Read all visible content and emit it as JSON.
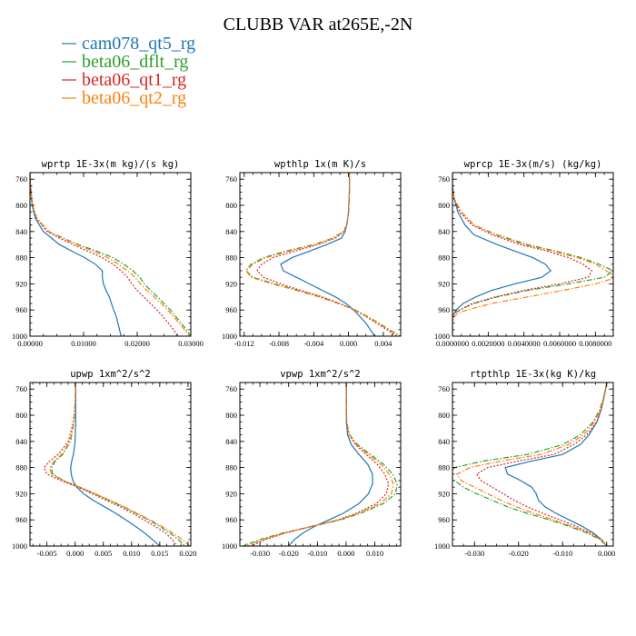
{
  "figure": {
    "title": "CLUBB VAR at265E,-2N"
  },
  "legend": [
    {
      "name": "cam078_qt5_rg",
      "color": "#1f77b4",
      "dash": "solid"
    },
    {
      "name": "beta06_dflt_rg",
      "color": "#2ca02c",
      "dash": "dashdot"
    },
    {
      "name": "beta06_qt1_rg",
      "color": "#d62728",
      "dash": "dot"
    },
    {
      "name": "beta06_qt2_rg",
      "color": "#ff7f0e",
      "dash": "dashdot"
    }
  ],
  "chart_data": [
    {
      "type": "line",
      "title": "wprtp 1E-3x(m kg)/(s kg)",
      "xlim": [
        0,
        0.03
      ],
      "ylim": [
        1000,
        750
      ],
      "xticks": [
        0,
        0.01,
        0.02,
        0.03
      ],
      "xtick_labels": [
        "0.00000",
        "0.01000",
        "0.02000",
        "0.03000"
      ],
      "yticks": [
        760,
        800,
        840,
        880,
        920,
        960,
        1000
      ],
      "ytick_labels": [
        "760",
        "800",
        "840",
        "880",
        "920",
        "960",
        "1000"
      ],
      "y": [
        750,
        760,
        780,
        800,
        820,
        840,
        850,
        860,
        870,
        880,
        890,
        900,
        910,
        920,
        930,
        940,
        950,
        960,
        970,
        980,
        990,
        1000
      ],
      "series": [
        {
          "name": "cam078_qt5_rg",
          "values": [
            0.0,
            0.0,
            0.0002,
            0.0004,
            0.001,
            0.0025,
            0.004,
            0.0055,
            0.0078,
            0.0102,
            0.0122,
            0.0135,
            0.0135,
            0.0137,
            0.0142,
            0.0148,
            0.0152,
            0.0156,
            0.0161,
            0.0164,
            0.0167,
            0.017
          ]
        },
        {
          "name": "beta06_dflt_rg",
          "values": [
            0.0,
            0.0,
            0.0002,
            0.0005,
            0.0013,
            0.0035,
            0.0062,
            0.009,
            0.0125,
            0.0155,
            0.0175,
            0.0192,
            0.0205,
            0.0213,
            0.0225,
            0.0238,
            0.025,
            0.0262,
            0.0272,
            0.0282,
            0.0292,
            0.03
          ]
        },
        {
          "name": "beta06_qt1_rg",
          "values": [
            0.0,
            0.0,
            0.0002,
            0.0005,
            0.0012,
            0.0032,
            0.0055,
            0.008,
            0.0108,
            0.0135,
            0.0155,
            0.017,
            0.0182,
            0.019,
            0.02,
            0.0212,
            0.0225,
            0.0237,
            0.0248,
            0.0258,
            0.0268,
            0.0275
          ]
        },
        {
          "name": "beta06_qt2_rg",
          "values": [
            0.0,
            0.0,
            0.0002,
            0.0005,
            0.0013,
            0.0034,
            0.006,
            0.0087,
            0.0118,
            0.0145,
            0.0165,
            0.0182,
            0.0196,
            0.0206,
            0.0218,
            0.0232,
            0.0245,
            0.0257,
            0.0268,
            0.0278,
            0.0288,
            0.0297
          ]
        }
      ]
    },
    {
      "type": "line",
      "title": "wpthlp 1x(m K)/s",
      "xlim": [
        -0.0125,
        0.006
      ],
      "ylim": [
        1000,
        750
      ],
      "xticks": [
        -0.012,
        -0.008,
        -0.004,
        0,
        0.004
      ],
      "xtick_labels": [
        "-0.012",
        "-0.008",
        "-0.004",
        "0.000",
        "0.004"
      ],
      "yticks": [
        760,
        800,
        840,
        880,
        920,
        960,
        1000
      ],
      "ytick_labels": [
        "760",
        "800",
        "840",
        "880",
        "920",
        "960",
        "1000"
      ],
      "y": [
        750,
        780,
        810,
        830,
        840,
        850,
        860,
        870,
        880,
        890,
        900,
        910,
        920,
        930,
        940,
        950,
        960,
        970,
        980,
        990,
        1000
      ],
      "series": [
        {
          "name": "cam078_qt5_rg",
          "values": [
            0.0001,
            0.0001,
            0.0,
            -0.0002,
            -0.0004,
            -0.0008,
            -0.0025,
            -0.0045,
            -0.0065,
            -0.0078,
            -0.0075,
            -0.006,
            -0.0045,
            -0.003,
            -0.0015,
            -0.0003,
            0.0006,
            0.0013,
            0.002,
            0.0025,
            0.003
          ]
        },
        {
          "name": "beta06_dflt_rg",
          "values": [
            0.0001,
            0.0001,
            0.0,
            -0.0002,
            -0.0006,
            -0.0018,
            -0.004,
            -0.0072,
            -0.0098,
            -0.0112,
            -0.0118,
            -0.011,
            -0.0085,
            -0.0058,
            -0.0032,
            -0.0011,
            0.0008,
            0.0022,
            0.0035,
            0.0047,
            0.006
          ]
        },
        {
          "name": "beta06_qt1_rg",
          "values": [
            0.0001,
            0.0001,
            0.0,
            -0.0002,
            -0.0005,
            -0.0015,
            -0.0035,
            -0.0062,
            -0.0087,
            -0.01,
            -0.0105,
            -0.0098,
            -0.0078,
            -0.0055,
            -0.003,
            -0.001,
            0.0007,
            0.002,
            0.0032,
            0.0044,
            0.0055
          ]
        },
        {
          "name": "beta06_qt2_rg",
          "values": [
            0.0001,
            0.0001,
            0.0,
            -0.0002,
            -0.0006,
            -0.0017,
            -0.0038,
            -0.0068,
            -0.0095,
            -0.011,
            -0.0118,
            -0.0112,
            -0.0088,
            -0.006,
            -0.0034,
            -0.0012,
            0.0007,
            0.0021,
            0.0034,
            0.0046,
            0.0058
          ]
        }
      ]
    },
    {
      "type": "line",
      "title": "wprcp 1E-3x(m/s) (kg/kg)",
      "xlim": [
        0,
        0.009
      ],
      "ylim": [
        1000,
        750
      ],
      "xticks": [
        0,
        0.002,
        0.004,
        0.006,
        0.008
      ],
      "xtick_labels": [
        "0.0000000",
        "0.0020000",
        "0.0040000",
        "0.0060000",
        "0.0080000"
      ],
      "yticks": [
        760,
        800,
        840,
        880,
        920,
        960,
        1000
      ],
      "ytick_labels": [
        "760",
        "800",
        "840",
        "880",
        "920",
        "960",
        "1000"
      ],
      "y": [
        750,
        770,
        790,
        810,
        830,
        845,
        860,
        870,
        880,
        890,
        900,
        910,
        920,
        930,
        940,
        950,
        960,
        965,
        970,
        980,
        1000
      ],
      "series": [
        {
          "name": "cam078_qt5_rg",
          "values": [
            0.0,
            0.0,
            0.0001,
            0.0003,
            0.0007,
            0.0012,
            0.0025,
            0.0035,
            0.0045,
            0.0052,
            0.0055,
            0.005,
            0.0035,
            0.0022,
            0.0013,
            0.0006,
            0.0002,
            0.0001,
            0.0,
            0.0,
            0.0
          ]
        },
        {
          "name": "beta06_dflt_rg",
          "values": [
            0.0,
            0.0,
            0.0001,
            0.0005,
            0.0012,
            0.0025,
            0.0042,
            0.0058,
            0.0072,
            0.0082,
            0.009,
            0.0085,
            0.0065,
            0.0042,
            0.0025,
            0.0012,
            0.0004,
            0.0001,
            0.0,
            0.0,
            0.0
          ]
        },
        {
          "name": "beta06_qt1_rg",
          "values": [
            0.0,
            0.0,
            0.0001,
            0.0004,
            0.0011,
            0.0022,
            0.0038,
            0.0053,
            0.0065,
            0.0073,
            0.0078,
            0.0076,
            0.006,
            0.004,
            0.0024,
            0.0011,
            0.0004,
            0.0001,
            0.0,
            0.0,
            0.0
          ]
        },
        {
          "name": "beta06_qt2_rg",
          "values": [
            0.0,
            0.0,
            0.0001,
            0.0005,
            0.0012,
            0.0024,
            0.004,
            0.0056,
            0.007,
            0.008,
            0.0086,
            0.0092,
            0.008,
            0.0062,
            0.0042,
            0.0022,
            0.0008,
            0.0003,
            0.0001,
            0.0,
            0.0
          ]
        }
      ]
    },
    {
      "type": "line",
      "title": "upwp 1xm^2/s^2",
      "xlim": [
        -0.008,
        0.0205
      ],
      "ylim": [
        1000,
        750
      ],
      "xticks": [
        -0.005,
        0,
        0.005,
        0.01,
        0.015,
        0.02
      ],
      "xtick_labels": [
        "-0.005",
        "0.000",
        "0.005",
        "0.010",
        "0.015",
        "0.020"
      ],
      "yticks": [
        760,
        800,
        840,
        880,
        920,
        960,
        1000
      ],
      "ytick_labels": [
        "760",
        "800",
        "840",
        "880",
        "920",
        "960",
        "1000"
      ],
      "y": [
        750,
        780,
        810,
        840,
        860,
        870,
        880,
        890,
        900,
        910,
        920,
        930,
        940,
        950,
        960,
        970,
        980,
        990,
        1000
      ],
      "series": [
        {
          "name": "cam078_qt5_rg",
          "values": [
            0.0001,
            0.0001,
            0.0001,
            0.0,
            -0.0003,
            -0.0006,
            -0.0008,
            -0.0007,
            -0.0004,
            0.0003,
            0.0015,
            0.0032,
            0.0052,
            0.0072,
            0.009,
            0.0107,
            0.0123,
            0.0137,
            0.015
          ]
        },
        {
          "name": "beta06_dflt_rg",
          "values": [
            0.0001,
            0.0,
            -0.0002,
            -0.0008,
            -0.0022,
            -0.0035,
            -0.0042,
            -0.004,
            -0.002,
            0.0008,
            0.0035,
            0.006,
            0.0085,
            0.0108,
            0.013,
            0.015,
            0.0168,
            0.0183,
            0.0195
          ]
        },
        {
          "name": "beta06_qt1_rg",
          "values": [
            0.0001,
            0.0,
            -0.0003,
            -0.0012,
            -0.003,
            -0.0045,
            -0.0055,
            -0.005,
            -0.0025,
            0.0005,
            0.003,
            0.0055,
            0.008,
            0.0102,
            0.0122,
            0.0142,
            0.016,
            0.0172,
            0.018
          ]
        },
        {
          "name": "beta06_qt2_rg",
          "values": [
            0.0001,
            0.0,
            -0.0002,
            -0.0009,
            -0.0024,
            -0.0037,
            -0.0045,
            -0.0042,
            -0.0021,
            0.0008,
            0.0036,
            0.0062,
            0.0087,
            0.011,
            0.0133,
            0.0154,
            0.0173,
            0.019,
            0.0203
          ]
        }
      ]
    },
    {
      "type": "line",
      "title": "vpwp 1xm^2/s^2",
      "xlim": [
        -0.037,
        0.019
      ],
      "ylim": [
        1000,
        750
      ],
      "xticks": [
        -0.03,
        -0.02,
        -0.01,
        0,
        0.01
      ],
      "xtick_labels": [
        "-0.030",
        "-0.020",
        "-0.010",
        "0.000",
        "0.010"
      ],
      "yticks": [
        760,
        800,
        840,
        880,
        920,
        960,
        1000
      ],
      "ytick_labels": [
        "760",
        "800",
        "840",
        "880",
        "920",
        "960",
        "1000"
      ],
      "y": [
        750,
        780,
        810,
        830,
        845,
        860,
        875,
        890,
        905,
        920,
        935,
        950,
        960,
        970,
        980,
        990,
        1000
      ],
      "series": [
        {
          "name": "cam078_qt5_rg",
          "values": [
            0.0001,
            0.0001,
            0.0001,
            0.0005,
            0.0018,
            0.0045,
            0.0075,
            0.0092,
            0.0092,
            0.0078,
            0.0045,
            -0.001,
            -0.006,
            -0.011,
            -0.015,
            -0.018,
            -0.02
          ]
        },
        {
          "name": "beta06_dflt_rg",
          "values": [
            0.0001,
            0.0001,
            0.0002,
            0.0012,
            0.004,
            0.0085,
            0.013,
            0.0162,
            0.0178,
            0.0172,
            0.013,
            0.005,
            -0.002,
            -0.012,
            -0.022,
            -0.03,
            -0.036
          ]
        },
        {
          "name": "beta06_qt1_rg",
          "values": [
            0.0001,
            0.0001,
            0.0002,
            0.001,
            0.0032,
            0.007,
            0.0108,
            0.0135,
            0.0148,
            0.014,
            0.0105,
            0.0035,
            -0.003,
            -0.012,
            -0.021,
            -0.028,
            -0.033
          ]
        },
        {
          "name": "beta06_qt2_rg",
          "values": [
            0.0001,
            0.0001,
            0.0002,
            0.0011,
            0.0036,
            0.0078,
            0.012,
            0.015,
            0.0165,
            0.0158,
            0.0118,
            0.0042,
            -0.0025,
            -0.012,
            -0.0215,
            -0.029,
            -0.0345
          ]
        }
      ]
    },
    {
      "type": "line",
      "title": "rtpthlp 1E-3x(kg K)/kg",
      "xlim": [
        -0.035,
        0.0015
      ],
      "ylim": [
        1000,
        750
      ],
      "xticks": [
        -0.03,
        -0.02,
        -0.01,
        0
      ],
      "xtick_labels": [
        "-0.030",
        "-0.020",
        "-0.010",
        "0.000"
      ],
      "yticks": [
        760,
        800,
        840,
        880,
        920,
        960,
        1000
      ],
      "ytick_labels": [
        "760",
        "800",
        "840",
        "880",
        "920",
        "960",
        "1000"
      ],
      "y": [
        750,
        770,
        790,
        810,
        830,
        845,
        860,
        870,
        880,
        890,
        900,
        910,
        920,
        930,
        940,
        950,
        960,
        970,
        980,
        990,
        1000
      ],
      "series": [
        {
          "name": "cam078_qt5_rg",
          "values": [
            0.0,
            -0.0005,
            -0.0012,
            -0.0022,
            -0.004,
            -0.006,
            -0.01,
            -0.017,
            -0.023,
            -0.0225,
            -0.0195,
            -0.017,
            -0.016,
            -0.0155,
            -0.014,
            -0.0115,
            -0.0085,
            -0.0055,
            -0.003,
            -0.0012,
            0.0
          ]
        },
        {
          "name": "beta06_dflt_rg",
          "values": [
            0.0,
            -0.0006,
            -0.0015,
            -0.003,
            -0.006,
            -0.01,
            -0.018,
            -0.028,
            -0.0345,
            -0.0355,
            -0.0345,
            -0.0325,
            -0.0295,
            -0.026,
            -0.0225,
            -0.018,
            -0.013,
            -0.0085,
            -0.0045,
            -0.0015,
            0.0
          ]
        },
        {
          "name": "beta06_qt1_rg",
          "values": [
            0.0,
            -0.0005,
            -0.0012,
            -0.0022,
            -0.0045,
            -0.0075,
            -0.012,
            -0.02,
            -0.027,
            -0.0295,
            -0.0285,
            -0.026,
            -0.0235,
            -0.021,
            -0.018,
            -0.0145,
            -0.0105,
            -0.0068,
            -0.0036,
            -0.0012,
            0.0
          ]
        },
        {
          "name": "beta06_qt2_rg",
          "values": [
            0.0,
            -0.0005,
            -0.0014,
            -0.0027,
            -0.0052,
            -0.0088,
            -0.015,
            -0.024,
            -0.031,
            -0.034,
            -0.033,
            -0.03,
            -0.027,
            -0.024,
            -0.0205,
            -0.0165,
            -0.012,
            -0.0078,
            -0.004,
            -0.0013,
            0.0
          ]
        }
      ]
    }
  ]
}
